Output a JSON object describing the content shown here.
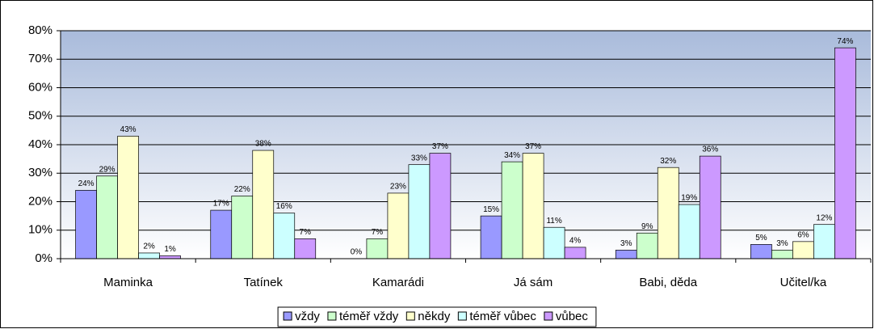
{
  "chart_data": {
    "type": "bar",
    "categories": [
      "Maminka",
      "Tatínek",
      "Kamarádi",
      "Já sám",
      "Babi, děda",
      "Učitel/ka"
    ],
    "series": [
      {
        "name": "vždy",
        "color": "#9999ff",
        "values": [
          24,
          17,
          0,
          15,
          3,
          5
        ],
        "value_labels": [
          "24%",
          "17%",
          "0%",
          "15%",
          "3%",
          "5%"
        ]
      },
      {
        "name": "téměř vždy",
        "color": "#ccffcc",
        "values": [
          29,
          22,
          7,
          34,
          9,
          3
        ],
        "value_labels": [
          "29%",
          "22%",
          "7%",
          "34%",
          "9%",
          "3%"
        ]
      },
      {
        "name": "někdy",
        "color": "#ffffcc",
        "values": [
          43,
          38,
          23,
          37,
          32,
          6
        ],
        "value_labels": [
          "43%",
          "38%",
          "23%",
          "37%",
          "32%",
          "6%"
        ]
      },
      {
        "name": "téměř vůbec",
        "color": "#ccffff",
        "values": [
          2,
          16,
          33,
          11,
          19,
          12
        ],
        "value_labels": [
          "2%",
          "16%",
          "33%",
          "11%",
          "19%",
          "12%"
        ]
      },
      {
        "name": "vůbec",
        "color": "#cc99ff",
        "values": [
          1,
          7,
          37,
          4,
          36,
          74
        ],
        "value_labels": [
          "1%",
          "7%",
          "37%",
          "4%",
          "36%",
          "74%"
        ]
      }
    ],
    "ylim": [
      0,
      80
    ],
    "yticks": [
      {
        "value": 0,
        "label": "0%"
      },
      {
        "value": 10,
        "label": "10%"
      },
      {
        "value": 20,
        "label": "20%"
      },
      {
        "value": 30,
        "label": "30%"
      },
      {
        "value": 40,
        "label": "40%"
      },
      {
        "value": 50,
        "label": "50%"
      },
      {
        "value": 60,
        "label": "60%"
      },
      {
        "value": 70,
        "label": "70%"
      },
      {
        "value": 80,
        "label": "80%"
      }
    ],
    "grid": true,
    "legend": "bottom"
  }
}
